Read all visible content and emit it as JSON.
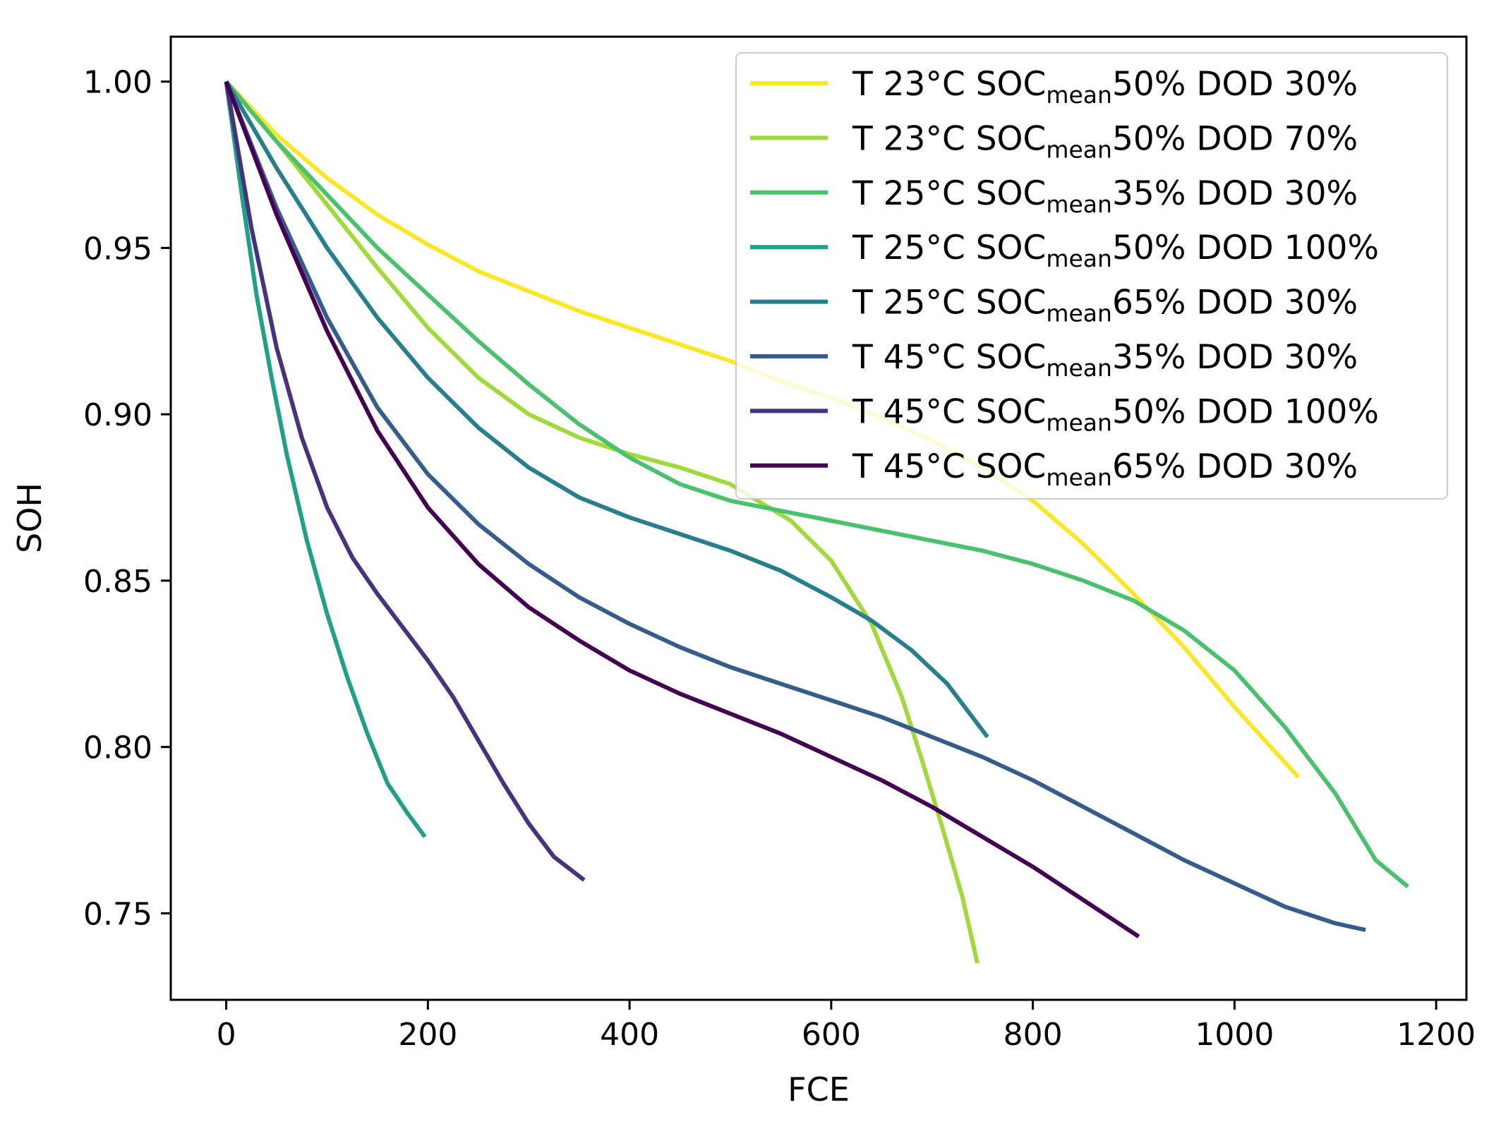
{
  "chart_data": {
    "type": "line",
    "xlabel": "FCE",
    "ylabel": "SOH",
    "xlim": [
      -55,
      1230
    ],
    "ylim": [
      0.724,
      1.0135
    ],
    "x_ticks": [
      0,
      200,
      400,
      600,
      800,
      1000,
      1200
    ],
    "x_tick_labels": [
      "0",
      "200",
      "400",
      "600",
      "800",
      "1000",
      "1200"
    ],
    "y_ticks": [
      0.75,
      0.8,
      0.85,
      0.9,
      0.95,
      1.0
    ],
    "y_tick_labels": [
      "0.75",
      "0.80",
      "0.85",
      "0.90",
      "0.95",
      "1.00"
    ],
    "grid": false,
    "legend_position": "top-right",
    "series": [
      {
        "name": "T 23°C SOCmean50% DOD 30%",
        "label_prefix": "T 23°C SOC",
        "label_sub": "mean",
        "label_suffix": "50% DOD 30%",
        "color": "#fde725",
        "x": [
          0,
          50,
          100,
          150,
          200,
          250,
          300,
          350,
          400,
          450,
          500,
          550,
          600,
          650,
          700,
          750,
          800,
          850,
          900,
          950,
          1000,
          1063
        ],
        "y": [
          1.0,
          0.984,
          0.971,
          0.96,
          0.951,
          0.943,
          0.937,
          0.931,
          0.926,
          0.921,
          0.916,
          0.91,
          0.905,
          0.899,
          0.892,
          0.884,
          0.874,
          0.861,
          0.846,
          0.83,
          0.812,
          0.791
        ]
      },
      {
        "name": "T 23°C SOCmean50% DOD 70%",
        "label_prefix": "T 23°C SOC",
        "label_sub": "mean",
        "label_suffix": "50% DOD 70%",
        "color": "#a0da39",
        "x": [
          0,
          50,
          100,
          150,
          200,
          250,
          300,
          350,
          400,
          450,
          500,
          560,
          600,
          640,
          670,
          690,
          710,
          730,
          745
        ],
        "y": [
          1.0,
          0.982,
          0.963,
          0.944,
          0.926,
          0.911,
          0.9,
          0.893,
          0.888,
          0.884,
          0.879,
          0.868,
          0.856,
          0.837,
          0.815,
          0.796,
          0.776,
          0.755,
          0.735
        ]
      },
      {
        "name": "T 25°C SOCmean35% DOD 30%",
        "label_prefix": "T 25°C SOC",
        "label_sub": "mean",
        "label_suffix": "35% DOD 30%",
        "color": "#4ac16d",
        "x": [
          0,
          50,
          100,
          150,
          200,
          250,
          300,
          350,
          400,
          450,
          500,
          550,
          600,
          650,
          700,
          750,
          800,
          850,
          900,
          950,
          1000,
          1050,
          1100,
          1140,
          1172
        ],
        "y": [
          1.0,
          0.982,
          0.966,
          0.95,
          0.936,
          0.922,
          0.909,
          0.897,
          0.887,
          0.879,
          0.874,
          0.871,
          0.868,
          0.865,
          0.862,
          0.859,
          0.855,
          0.85,
          0.844,
          0.835,
          0.823,
          0.806,
          0.786,
          0.766,
          0.758
        ]
      },
      {
        "name": "T 25°C SOCmean50% DOD 100%",
        "label_prefix": "T 25°C SOC",
        "label_sub": "mean",
        "label_suffix": "50% DOD 100%",
        "color": "#1fa187",
        "x": [
          0,
          15,
          30,
          45,
          60,
          80,
          100,
          120,
          140,
          160,
          180,
          197
        ],
        "y": [
          1.0,
          0.967,
          0.936,
          0.911,
          0.888,
          0.862,
          0.84,
          0.821,
          0.804,
          0.789,
          0.78,
          0.773
        ]
      },
      {
        "name": "T 25°C SOCmean65% DOD 30%",
        "label_prefix": "T 25°C SOC",
        "label_sub": "mean",
        "label_suffix": "65% DOD 30%",
        "color": "#277f8e",
        "x": [
          0,
          50,
          100,
          150,
          200,
          250,
          300,
          350,
          400,
          450,
          500,
          550,
          600,
          640,
          680,
          715,
          755
        ],
        "y": [
          1.0,
          0.974,
          0.95,
          0.929,
          0.911,
          0.896,
          0.884,
          0.875,
          0.869,
          0.864,
          0.859,
          0.853,
          0.845,
          0.838,
          0.829,
          0.819,
          0.803
        ]
      },
      {
        "name": "T 45°C SOCmean35% DOD 30%",
        "label_prefix": "T 45°C SOC",
        "label_sub": "mean",
        "label_suffix": "35% DOD 30%",
        "color": "#365c8d",
        "x": [
          0,
          50,
          100,
          150,
          200,
          250,
          300,
          350,
          400,
          450,
          500,
          550,
          600,
          650,
          700,
          750,
          800,
          850,
          900,
          950,
          1000,
          1050,
          1100,
          1130
        ],
        "y": [
          1.0,
          0.962,
          0.929,
          0.902,
          0.882,
          0.867,
          0.855,
          0.845,
          0.837,
          0.83,
          0.824,
          0.819,
          0.814,
          0.809,
          0.803,
          0.797,
          0.79,
          0.782,
          0.774,
          0.766,
          0.759,
          0.752,
          0.747,
          0.745
        ]
      },
      {
        "name": "T 45°C SOCmean50% DOD 100%",
        "label_prefix": "T 45°C SOC",
        "label_sub": "mean",
        "label_suffix": "50% DOD 100%",
        "color": "#46327e",
        "x": [
          0,
          25,
          50,
          75,
          100,
          125,
          150,
          175,
          200,
          225,
          250,
          275,
          300,
          325,
          355
        ],
        "y": [
          1.0,
          0.956,
          0.92,
          0.893,
          0.872,
          0.857,
          0.846,
          0.836,
          0.826,
          0.815,
          0.802,
          0.789,
          0.777,
          0.767,
          0.76
        ]
      },
      {
        "name": "T 45°C SOCmean65% DOD 30%",
        "label_prefix": "T 45°C SOC",
        "label_sub": "mean",
        "label_suffix": "65% DOD 30%",
        "color": "#440154",
        "x": [
          0,
          50,
          100,
          150,
          200,
          250,
          300,
          350,
          400,
          450,
          500,
          550,
          600,
          650,
          700,
          750,
          800,
          850,
          905
        ],
        "y": [
          1.0,
          0.96,
          0.925,
          0.895,
          0.872,
          0.855,
          0.842,
          0.832,
          0.823,
          0.816,
          0.81,
          0.804,
          0.797,
          0.79,
          0.782,
          0.773,
          0.764,
          0.754,
          0.743
        ]
      }
    ]
  }
}
